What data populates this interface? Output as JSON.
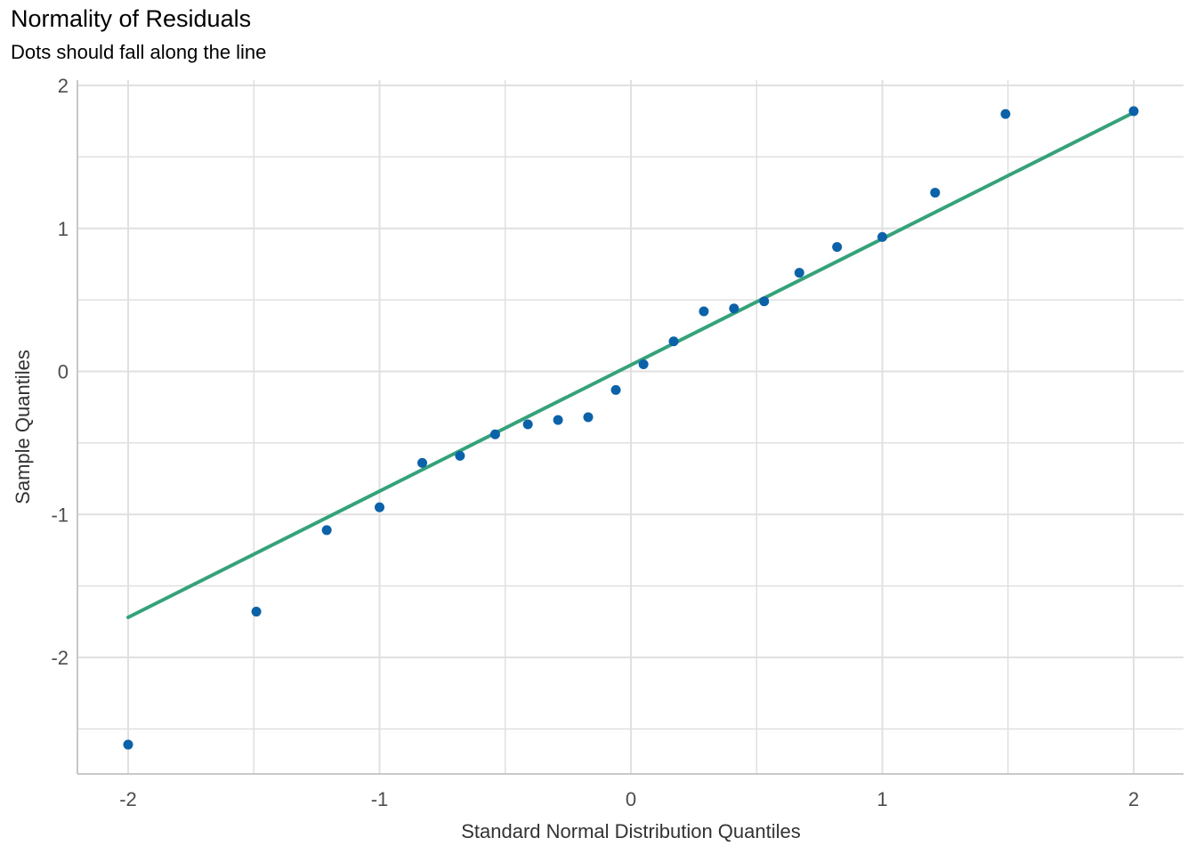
{
  "chart_data": {
    "type": "scatter",
    "title": "Normality of Residuals",
    "subtitle": "Dots should fall along the line",
    "xlabel": "Standard Normal Distribution Quantiles",
    "ylabel": "Sample Quantiles",
    "xlim": [
      -2.2,
      2.2
    ],
    "ylim": [
      -2.8,
      2.05
    ],
    "x_ticks": [
      -2,
      -1,
      0,
      1,
      2
    ],
    "x_tick_labels": [
      "-2",
      "-1",
      "0",
      "1",
      "2"
    ],
    "y_ticks": [
      -2,
      -1,
      0,
      1,
      2
    ],
    "y_tick_labels": [
      "-2",
      "-1",
      "0",
      "1",
      "2"
    ],
    "x_minor_ticks": [
      -1.5,
      -0.5,
      0.5,
      1.5
    ],
    "y_minor_ticks": [
      -2.5,
      -1.5,
      -0.5,
      0.5,
      1.5
    ],
    "grid": true,
    "points": [
      {
        "x": -2.0,
        "y": -2.61
      },
      {
        "x": -1.49,
        "y": -1.68
      },
      {
        "x": -1.21,
        "y": -1.11
      },
      {
        "x": -1.0,
        "y": -0.95
      },
      {
        "x": -0.83,
        "y": -0.64
      },
      {
        "x": -0.68,
        "y": -0.59
      },
      {
        "x": -0.54,
        "y": -0.44
      },
      {
        "x": -0.41,
        "y": -0.37
      },
      {
        "x": -0.29,
        "y": -0.34
      },
      {
        "x": -0.17,
        "y": -0.32
      },
      {
        "x": -0.06,
        "y": -0.13
      },
      {
        "x": 0.05,
        "y": 0.05
      },
      {
        "x": 0.17,
        "y": 0.21
      },
      {
        "x": 0.29,
        "y": 0.42
      },
      {
        "x": 0.41,
        "y": 0.44
      },
      {
        "x": 0.53,
        "y": 0.49
      },
      {
        "x": 0.67,
        "y": 0.69
      },
      {
        "x": 0.82,
        "y": 0.87
      },
      {
        "x": 1.0,
        "y": 0.94
      },
      {
        "x": 1.21,
        "y": 1.25
      },
      {
        "x": 1.49,
        "y": 1.8
      },
      {
        "x": 2.0,
        "y": 1.82
      }
    ],
    "reference_line": {
      "x1": -2.0,
      "y1": -1.72,
      "x2": 2.0,
      "y2": 1.81
    },
    "point_color": "#0b62a8",
    "line_color": "#35a27a",
    "grid_color": "#e0e0e0",
    "axis_color": "#c8c8c8"
  }
}
